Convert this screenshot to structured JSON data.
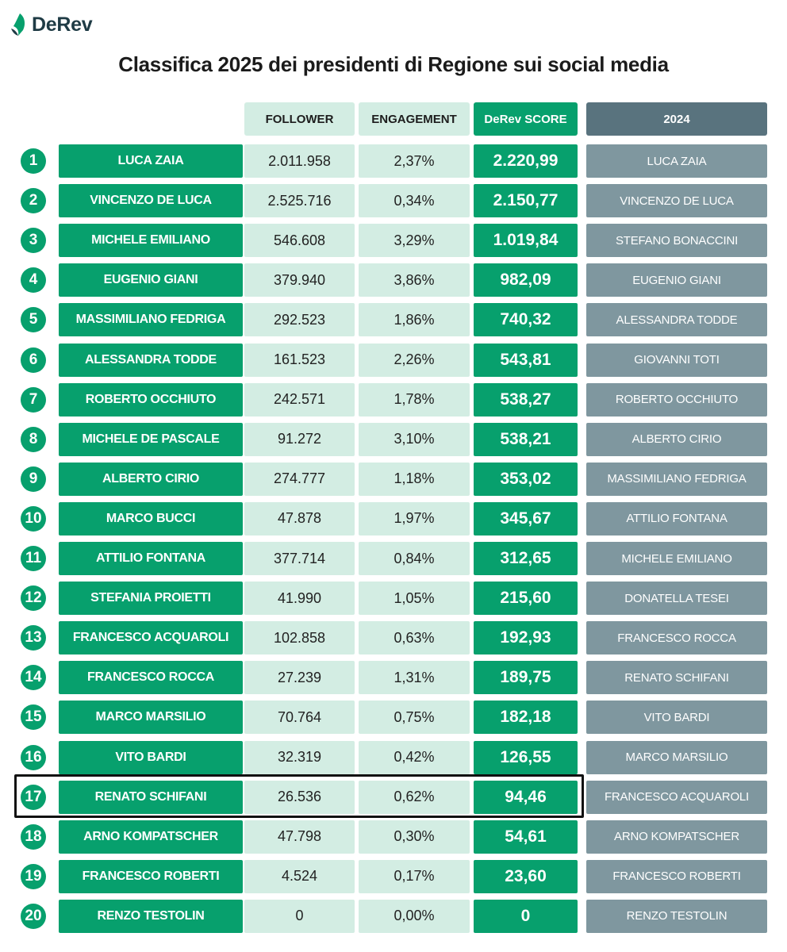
{
  "brand": {
    "logo_text": "DeRev"
  },
  "title": "Classifica 2025 dei presidenti di Regione sui social media",
  "headers": {
    "follower": "FOLLOWER",
    "engagement": "ENGAGEMENT",
    "score": "DeRev SCORE",
    "prev": "2024"
  },
  "colors": {
    "green": "#07a06d",
    "light_green": "#d3ede3",
    "slate_header": "#59737e",
    "slate": "#7f979f"
  },
  "highlighted_rank": "17",
  "rows": [
    {
      "rank": "1",
      "name": "LUCA ZAIA",
      "follower": "2.011.958",
      "engagement": "2,37%",
      "score": "2.220,99",
      "prev": "LUCA ZAIA"
    },
    {
      "rank": "2",
      "name": "VINCENZO DE LUCA",
      "follower": "2.525.716",
      "engagement": "0,34%",
      "score": "2.150,77",
      "prev": "VINCENZO DE LUCA"
    },
    {
      "rank": "3",
      "name": "MICHELE EMILIANO",
      "follower": "546.608",
      "engagement": "3,29%",
      "score": "1.019,84",
      "prev": "STEFANO BONACCINI"
    },
    {
      "rank": "4",
      "name": "EUGENIO GIANI",
      "follower": "379.940",
      "engagement": "3,86%",
      "score": "982,09",
      "prev": "EUGENIO GIANI"
    },
    {
      "rank": "5",
      "name": "MASSIMILIANO FEDRIGA",
      "follower": "292.523",
      "engagement": "1,86%",
      "score": "740,32",
      "prev": "ALESSANDRA TODDE"
    },
    {
      "rank": "6",
      "name": "ALESSANDRA TODDE",
      "follower": "161.523",
      "engagement": "2,26%",
      "score": "543,81",
      "prev": "GIOVANNI TOTI"
    },
    {
      "rank": "7",
      "name": "ROBERTO OCCHIUTO",
      "follower": "242.571",
      "engagement": "1,78%",
      "score": "538,27",
      "prev": "ROBERTO OCCHIUTO"
    },
    {
      "rank": "8",
      "name": "MICHELE DE PASCALE",
      "follower": "91.272",
      "engagement": "3,10%",
      "score": "538,21",
      "prev": "ALBERTO CIRIO"
    },
    {
      "rank": "9",
      "name": "ALBERTO CIRIO",
      "follower": "274.777",
      "engagement": "1,18%",
      "score": "353,02",
      "prev": "MASSIMILIANO FEDRIGA"
    },
    {
      "rank": "10",
      "name": "MARCO BUCCI",
      "follower": "47.878",
      "engagement": "1,97%",
      "score": "345,67",
      "prev": "ATTILIO FONTANA"
    },
    {
      "rank": "11",
      "name": "ATTILIO FONTANA",
      "follower": "377.714",
      "engagement": "0,84%",
      "score": "312,65",
      "prev": "MICHELE EMILIANO"
    },
    {
      "rank": "12",
      "name": "STEFANIA PROIETTI",
      "follower": "41.990",
      "engagement": "1,05%",
      "score": "215,60",
      "prev": "DONATELLA TESEI"
    },
    {
      "rank": "13",
      "name": "FRANCESCO ACQUAROLI",
      "follower": "102.858",
      "engagement": "0,63%",
      "score": "192,93",
      "prev": "FRANCESCO ROCCA"
    },
    {
      "rank": "14",
      "name": "FRANCESCO ROCCA",
      "follower": "27.239",
      "engagement": "1,31%",
      "score": "189,75",
      "prev": "RENATO SCHIFANI"
    },
    {
      "rank": "15",
      "name": "MARCO MARSILIO",
      "follower": "70.764",
      "engagement": "0,75%",
      "score": "182,18",
      "prev": "VITO BARDI"
    },
    {
      "rank": "16",
      "name": "VITO BARDI",
      "follower": "32.319",
      "engagement": "0,42%",
      "score": "126,55",
      "prev": "MARCO MARSILIO"
    },
    {
      "rank": "17",
      "name": "RENATO SCHIFANI",
      "follower": "26.536",
      "engagement": "0,62%",
      "score": "94,46",
      "prev": "FRANCESCO ACQUAROLI"
    },
    {
      "rank": "18",
      "name": "ARNO KOMPATSCHER",
      "follower": "47.798",
      "engagement": "0,30%",
      "score": "54,61",
      "prev": "ARNO KOMPATSCHER"
    },
    {
      "rank": "19",
      "name": "FRANCESCO ROBERTI",
      "follower": "4.524",
      "engagement": "0,17%",
      "score": "23,60",
      "prev": "FRANCESCO ROBERTI"
    },
    {
      "rank": "20",
      "name": "RENZO TESTOLIN",
      "follower": "0",
      "engagement": "0,00%",
      "score": "0",
      "prev": "RENZO TESTOLIN"
    }
  ]
}
